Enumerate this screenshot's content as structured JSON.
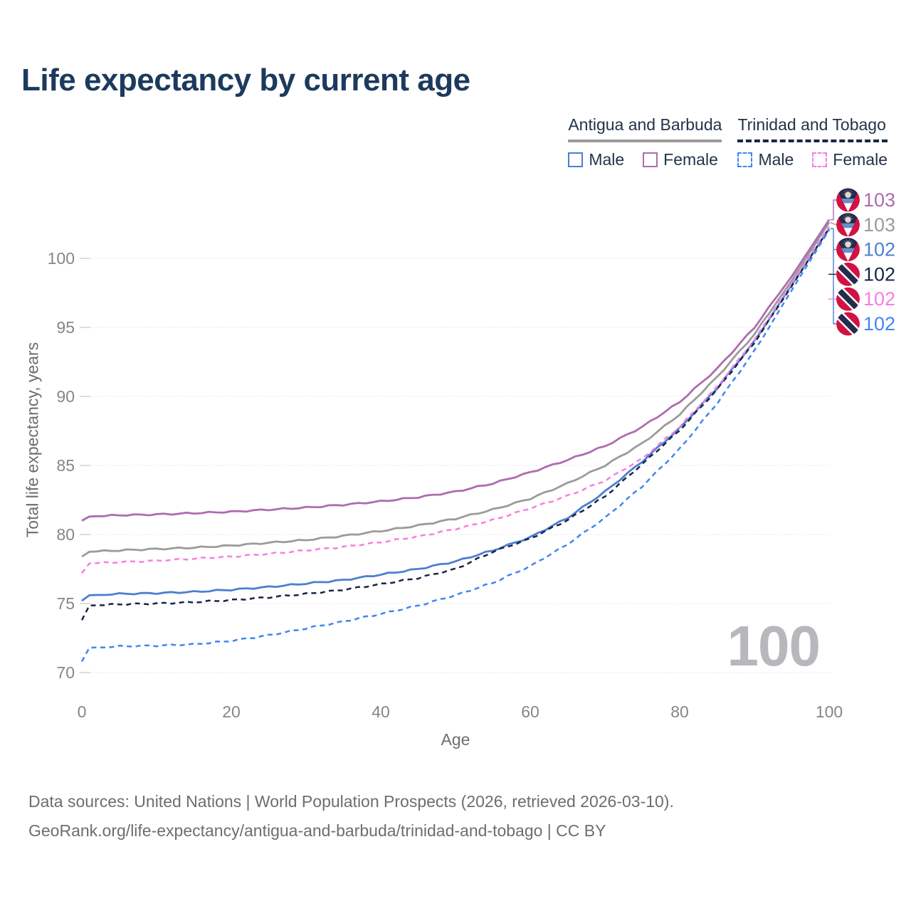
{
  "header": {
    "title": "Life expectancy by current age"
  },
  "legend": {
    "groups": [
      {
        "label": "Antigua and Barbuda",
        "line_style": "solid",
        "line_color": "#9b9b9b",
        "items": [
          {
            "label": "Male",
            "color": "#4d7fd1",
            "style": "solid"
          },
          {
            "label": "Female",
            "color": "#ae6cae",
            "style": "solid"
          }
        ]
      },
      {
        "label": "Trinidad and Tobago",
        "line_style": "dashed",
        "line_color": "#172742",
        "items": [
          {
            "label": "Male",
            "color": "#4186f0",
            "style": "dashed"
          },
          {
            "label": "Female",
            "color": "#f97ce3",
            "style": "dashed"
          }
        ]
      }
    ]
  },
  "chart_data": {
    "type": "line",
    "title": "Life expectancy by current age",
    "xlabel": "Age",
    "ylabel": "Total life expectancy, years",
    "x_ticks": [
      0,
      20,
      40,
      60,
      80,
      100
    ],
    "y_ticks": [
      70,
      75,
      80,
      85,
      90,
      95,
      100
    ],
    "xlim": [
      0,
      100
    ],
    "ylim": [
      69.5,
      103.5
    ],
    "grid": "horizontal-dotted",
    "legend_position": "top-right",
    "ages": [
      0,
      1,
      5,
      10,
      15,
      20,
      25,
      30,
      35,
      40,
      45,
      50,
      55,
      60,
      65,
      70,
      75,
      80,
      85,
      90,
      95,
      100
    ],
    "series": [
      {
        "name": "Antigua and Barbuda Female",
        "country": "Antigua and Barbuda",
        "sex": "Female",
        "style": "solid",
        "color": "#ae6cae",
        "width": 2.8,
        "end_value": 103,
        "values": [
          81.0,
          81.3,
          81.4,
          81.45,
          81.55,
          81.65,
          81.8,
          81.95,
          82.15,
          82.4,
          82.7,
          83.1,
          83.7,
          84.5,
          85.4,
          86.4,
          87.8,
          89.6,
          92.0,
          95.0,
          98.7,
          102.8
        ]
      },
      {
        "name": "Antigua and Barbuda Total",
        "country": "Antigua and Barbuda",
        "sex": "Total",
        "style": "solid",
        "color": "#9b9b9b",
        "width": 2.8,
        "end_value": 103,
        "values": [
          78.4,
          78.75,
          78.85,
          78.95,
          79.05,
          79.2,
          79.4,
          79.6,
          79.9,
          80.25,
          80.65,
          81.15,
          81.8,
          82.6,
          83.7,
          85.0,
          86.6,
          88.7,
          91.4,
          94.5,
          98.4,
          102.6
        ]
      },
      {
        "name": "Antigua and Barbuda Male",
        "country": "Antigua and Barbuda",
        "sex": "Male",
        "style": "solid",
        "color": "#4d7fd1",
        "width": 2.8,
        "end_value": 102,
        "values": [
          75.2,
          75.6,
          75.7,
          75.75,
          75.85,
          76.0,
          76.2,
          76.45,
          76.7,
          77.1,
          77.5,
          78.05,
          78.85,
          79.8,
          81.2,
          83.1,
          85.3,
          87.7,
          90.6,
          94.0,
          98.1,
          102.15
        ]
      },
      {
        "name": "Trinidad and Tobago Total",
        "country": "Trinidad and Tobago",
        "sex": "Total",
        "style": "dashed",
        "color": "#172742",
        "width": 2.5,
        "end_value": 102,
        "values": [
          73.8,
          74.85,
          74.95,
          75.0,
          75.1,
          75.25,
          75.45,
          75.7,
          76.0,
          76.4,
          76.85,
          77.5,
          78.75,
          79.7,
          81.05,
          82.75,
          85.1,
          87.55,
          90.5,
          93.9,
          98.0,
          102.2
        ]
      },
      {
        "name": "Trinidad and Tobago Female",
        "country": "Trinidad and Tobago",
        "sex": "Female",
        "style": "dashed",
        "color": "#f97ce3",
        "width": 2.5,
        "end_value": 102,
        "values": [
          77.2,
          77.9,
          78.0,
          78.1,
          78.25,
          78.4,
          78.6,
          78.85,
          79.1,
          79.45,
          79.85,
          80.4,
          81.05,
          81.9,
          82.8,
          83.9,
          85.5,
          87.8,
          90.7,
          94.1,
          98.2,
          102.3
        ]
      },
      {
        "name": "Trinidad and Tobago Male",
        "country": "Trinidad and Tobago",
        "sex": "Male",
        "style": "dashed",
        "color": "#4186f0",
        "width": 2.5,
        "end_value": 102,
        "values": [
          70.8,
          71.8,
          71.9,
          71.95,
          72.05,
          72.3,
          72.7,
          73.2,
          73.7,
          74.25,
          74.85,
          75.6,
          76.5,
          77.7,
          79.3,
          81.2,
          83.5,
          86.2,
          89.5,
          93.3,
          97.7,
          102.05
        ]
      }
    ],
    "end_labels": [
      {
        "value": "103",
        "color": "#ae6cae",
        "flag": "antigua-and-barbuda"
      },
      {
        "value": "103",
        "color": "#9b9b9b",
        "flag": "antigua-and-barbuda"
      },
      {
        "value": "102",
        "color": "#4d7fd1",
        "flag": "antigua-and-barbuda"
      },
      {
        "value": "102",
        "color": "#172742",
        "flag": "trinidad-and-tobago"
      },
      {
        "value": "102",
        "color": "#f97ce3",
        "flag": "trinidad-and-tobago"
      },
      {
        "value": "102",
        "color": "#4186f0",
        "flag": "trinidad-and-tobago"
      }
    ]
  },
  "watermark": {
    "value": "100"
  },
  "footer": {
    "line1": "Data sources: United Nations | World Population Prospects (2026, retrieved 2026-03-10).",
    "line2": "GeoRank.org/life-expectancy/antigua-and-barbuda/trinidad-and-tobago | CC BY"
  }
}
